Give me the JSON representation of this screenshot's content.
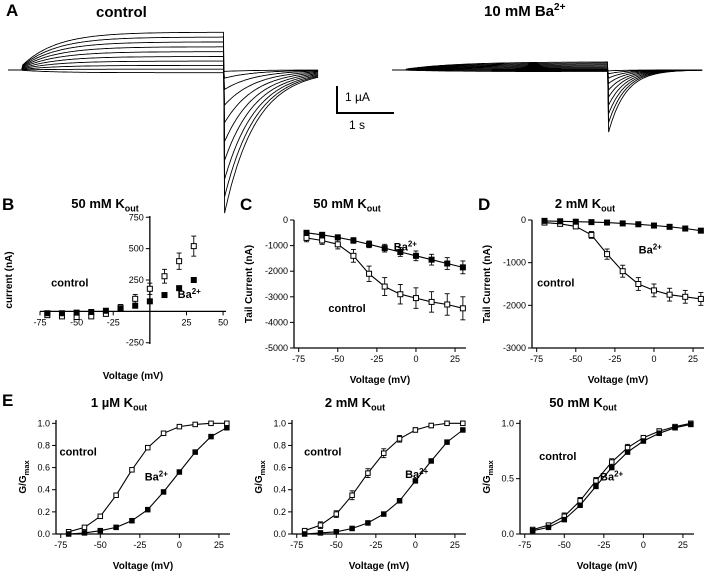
{
  "A": {
    "label": "A",
    "control_title": "control",
    "ba_title": {
      "pre": "10 mM Ba",
      "sup": "2+"
    },
    "scalebar": {
      "amp": "1 µA",
      "time": "1 s"
    },
    "traces": {
      "control": {
        "pulse_uA": [
          1.4,
          1.22,
          1.04,
          0.86,
          0.68,
          0.5,
          0.33,
          0.17,
          0.03,
          -0.1
        ],
        "tail_uA": [
          -5.3,
          -4.7,
          -4.05,
          -3.35,
          -2.65,
          -1.95,
          -1.3,
          -0.72,
          -0.3,
          -0.05
        ],
        "tau_act_s": 0.6,
        "tau_tail_s": 0.55
      },
      "ba": {
        "pulse_uA": [
          0.3,
          0.26,
          0.22,
          0.18,
          0.14,
          0.1,
          0.06,
          0.02,
          -0.02,
          -0.06
        ],
        "tail_uA": [
          -2.3,
          -1.95,
          -1.62,
          -1.3,
          -1.0,
          -0.74,
          -0.5,
          -0.3,
          -0.14,
          -0.03
        ],
        "tau_act_s": 0.9,
        "tau_tail_s": 0.3
      }
    }
  },
  "B": {
    "label": "B",
    "title": {
      "pre": "50 mM K",
      "sub": "out"
    }
  },
  "C": {
    "label": "C",
    "title": {
      "pre": "50 mM K",
      "sub": "out"
    }
  },
  "D": {
    "label": "D",
    "title": {
      "pre": "2 mM K",
      "sub": "out"
    }
  },
  "E": {
    "label": "E",
    "p1": {
      "title": {
        "pre": "1 µM K",
        "sub": "out"
      }
    },
    "p2": {
      "title": {
        "pre": "2 mM K",
        "sub": "out"
      }
    },
    "p3": {
      "title": {
        "pre": "50 mM K",
        "sub": "out"
      }
    }
  },
  "chart_data": [
    {
      "panel": "B",
      "type": "scatter",
      "xlabel": "Voltage (mV)",
      "ylabel": {
        "pre": "current (nA)"
      },
      "xlim": [
        -75,
        52
      ],
      "ylim": [
        -260,
        760
      ],
      "xticks": [
        {
          "v": -75,
          "l": "-75"
        },
        {
          "v": -50,
          "l": "-50"
        },
        {
          "v": -25,
          "l": "-25"
        },
        {
          "v": 25,
          "l": "25"
        },
        {
          "v": 50,
          "l": "50"
        }
      ],
      "yticks": [
        {
          "v": -250,
          "l": "-250"
        },
        {
          "v": 250,
          "l": "250"
        },
        {
          "v": 500,
          "l": "500"
        },
        {
          "v": 750,
          "l": "750"
        }
      ],
      "x": [
        -70,
        -60,
        -50,
        -40,
        -30,
        -20,
        -10,
        0,
        10,
        20,
        30
      ],
      "series": [
        {
          "name": "control",
          "marker": "open",
          "line": false,
          "y": [
            -30,
            -40,
            -45,
            -40,
            -20,
            30,
            100,
            180,
            280,
            400,
            520
          ],
          "err": [
            0,
            0,
            0,
            0,
            0,
            25,
            35,
            45,
            55,
            65,
            80
          ]
        },
        {
          "name": "Ba2+",
          "marker": "filled",
          "line": false,
          "y": [
            -15,
            -15,
            -10,
            -5,
            5,
            20,
            45,
            80,
            130,
            185,
            250
          ],
          "err": []
        }
      ],
      "annotations": [
        {
          "pre": "control",
          "fx": 0.06,
          "fy": 0.55
        },
        {
          "pre": "Ba",
          "sup": "2+",
          "fx": 0.74,
          "fy": 0.64
        }
      ]
    },
    {
      "panel": "C",
      "type": "line",
      "xlabel": "Voltage (mV)",
      "ylabel": {
        "pre": "Tail Current (nA)"
      },
      "xlim": [
        -78,
        32
      ],
      "ylim": [
        -5000,
        0
      ],
      "xticks": [
        {
          "v": -75,
          "l": "-75"
        },
        {
          "v": -50,
          "l": "-50"
        },
        {
          "v": -25,
          "l": "-25"
        },
        {
          "v": 0,
          "l": "0"
        },
        {
          "v": 25,
          "l": "25"
        }
      ],
      "yticks": [
        {
          "v": 0,
          "l": "0"
        },
        {
          "v": -1000,
          "l": "-1000"
        },
        {
          "v": -2000,
          "l": "-2000"
        },
        {
          "v": -3000,
          "l": "-3000"
        },
        {
          "v": -4000,
          "l": "-4000"
        },
        {
          "v": -5000,
          "l": "-5000"
        }
      ],
      "x": [
        -70,
        -60,
        -50,
        -40,
        -30,
        -20,
        -10,
        0,
        10,
        20,
        30
      ],
      "series": [
        {
          "name": "control",
          "marker": "open",
          "line": true,
          "y": [
            -700,
            -800,
            -950,
            -1400,
            -2100,
            -2600,
            -2900,
            -3050,
            -3200,
            -3300,
            -3450
          ],
          "err": [
            150,
            150,
            180,
            250,
            300,
            350,
            380,
            400,
            400,
            420,
            450
          ]
        },
        {
          "name": "Ba2+",
          "marker": "filled",
          "line": true,
          "y": [
            -500,
            -580,
            -680,
            -800,
            -950,
            -1100,
            -1250,
            -1400,
            -1550,
            -1700,
            -1850
          ],
          "err": [
            90,
            95,
            100,
            110,
            130,
            150,
            170,
            190,
            210,
            230,
            250
          ]
        }
      ],
      "annotations": [
        {
          "pre": "Ba",
          "sup": "2+",
          "fx": 0.58,
          "fy": 0.24
        },
        {
          "pre": "control",
          "fx": 0.2,
          "fy": 0.72
        }
      ]
    },
    {
      "panel": "D",
      "type": "line",
      "xlabel": "Voltage (mV)",
      "ylabel": {
        "pre": "Tail Current (nA)"
      },
      "xlim": [
        -78,
        32
      ],
      "ylim": [
        -3000,
        0
      ],
      "xticks": [
        {
          "v": -75,
          "l": "-75"
        },
        {
          "v": -50,
          "l": "-50"
        },
        {
          "v": -25,
          "l": "-25"
        },
        {
          "v": 0,
          "l": "0"
        },
        {
          "v": 25,
          "l": "25"
        }
      ],
      "yticks": [
        {
          "v": 0,
          "l": "0"
        },
        {
          "v": -1000,
          "l": "-1000"
        },
        {
          "v": -2000,
          "l": "-2000"
        },
        {
          "v": -3000,
          "l": "-3000"
        }
      ],
      "x": [
        -70,
        -60,
        -50,
        -40,
        -30,
        -20,
        -10,
        0,
        10,
        20,
        30
      ],
      "series": [
        {
          "name": "control",
          "marker": "open",
          "line": true,
          "y": [
            -60,
            -90,
            -150,
            -350,
            -800,
            -1200,
            -1500,
            -1650,
            -1750,
            -1800,
            -1850
          ],
          "err": [
            30,
            30,
            40,
            80,
            120,
            140,
            150,
            150,
            150,
            150,
            150
          ]
        },
        {
          "name": "Ba2+",
          "marker": "filled",
          "line": true,
          "y": [
            -20,
            -30,
            -40,
            -50,
            -60,
            -80,
            -100,
            -130,
            -160,
            -200,
            -250
          ],
          "err": []
        }
      ],
      "annotations": [
        {
          "pre": "Ba",
          "sup": "2+",
          "fx": 0.62,
          "fy": 0.26
        },
        {
          "pre": "control",
          "fx": 0.03,
          "fy": 0.52
        }
      ]
    },
    {
      "panel": "E1",
      "type": "line",
      "xlabel": "Voltage (mV)",
      "ylabel": {
        "pre": "G/G",
        "sub": "max"
      },
      "xlim": [
        -78,
        32
      ],
      "ylim": [
        0,
        1.03
      ],
      "xticks": [
        {
          "v": -75,
          "l": "-75"
        },
        {
          "v": -50,
          "l": "-50"
        },
        {
          "v": -25,
          "l": "-25"
        },
        {
          "v": 0,
          "l": "0"
        },
        {
          "v": 25,
          "l": "25"
        }
      ],
      "yticks": [
        {
          "v": 0,
          "l": "0.0"
        },
        {
          "v": 0.2,
          "l": "0.2"
        },
        {
          "v": 0.4,
          "l": "0.4"
        },
        {
          "v": 0.6,
          "l": "0.6"
        },
        {
          "v": 0.8,
          "l": "0.8"
        },
        {
          "v": 1.0,
          "l": "1.0"
        }
      ],
      "x": [
        -70,
        -60,
        -50,
        -40,
        -30,
        -20,
        -10,
        0,
        10,
        20,
        30
      ],
      "series": [
        {
          "name": "control",
          "marker": "open",
          "line": true,
          "y": [
            0.02,
            0.06,
            0.16,
            0.35,
            0.58,
            0.78,
            0.91,
            0.97,
            0.99,
            1.0,
            1.0
          ],
          "err": []
        },
        {
          "name": "Ba2+",
          "marker": "filled",
          "line": true,
          "y": [
            0.0,
            0.01,
            0.03,
            0.06,
            0.12,
            0.22,
            0.38,
            0.56,
            0.74,
            0.88,
            0.96
          ],
          "err": []
        }
      ],
      "annotations": [
        {
          "pre": "control",
          "fx": 0.02,
          "fy": 0.31
        },
        {
          "pre": "Ba",
          "sup": "2+",
          "fx": 0.51,
          "fy": 0.53
        }
      ]
    },
    {
      "panel": "E2",
      "type": "line",
      "xlabel": "Voltage (mV)",
      "ylabel": {
        "pre": "G/G",
        "sub": "max"
      },
      "xlim": [
        -78,
        32
      ],
      "ylim": [
        0,
        1.03
      ],
      "xticks": [
        {
          "v": -75,
          "l": "-75"
        },
        {
          "v": -50,
          "l": "-50"
        },
        {
          "v": -25,
          "l": "-25"
        },
        {
          "v": 0,
          "l": "0"
        },
        {
          "v": 25,
          "l": "25"
        }
      ],
      "yticks": [
        {
          "v": 0,
          "l": "0.0"
        },
        {
          "v": 0.2,
          "l": "0.2"
        },
        {
          "v": 0.4,
          "l": "0.4"
        },
        {
          "v": 0.6,
          "l": "0.6"
        },
        {
          "v": 0.8,
          "l": "0.8"
        },
        {
          "v": 1.0,
          "l": "1.0"
        }
      ],
      "x": [
        -70,
        -60,
        -50,
        -40,
        -30,
        -20,
        -10,
        0,
        10,
        20,
        30
      ],
      "series": [
        {
          "name": "control",
          "marker": "open",
          "line": true,
          "y": [
            0.03,
            0.08,
            0.18,
            0.35,
            0.55,
            0.73,
            0.86,
            0.94,
            0.98,
            1.0,
            1.0
          ],
          "err": [
            0.02,
            0.03,
            0.03,
            0.04,
            0.04,
            0.04,
            0.03,
            0.02,
            0.02,
            0.02,
            0.02
          ]
        },
        {
          "name": "Ba2+",
          "marker": "filled",
          "line": true,
          "y": [
            0.0,
            0.01,
            0.02,
            0.05,
            0.1,
            0.18,
            0.3,
            0.48,
            0.66,
            0.83,
            0.94
          ],
          "err": []
        }
      ],
      "annotations": [
        {
          "pre": "control",
          "fx": 0.07,
          "fy": 0.31
        },
        {
          "pre": "Ba",
          "sup": "2+",
          "fx": 0.65,
          "fy": 0.51
        }
      ]
    },
    {
      "panel": "E3",
      "type": "line",
      "xlabel": "Voltage (mV)",
      "ylabel": {
        "pre": "G/G",
        "sub": "max"
      },
      "xlim": [
        -78,
        32
      ],
      "ylim": [
        0,
        1.03
      ],
      "xticks": [
        {
          "v": -75,
          "l": "-75"
        },
        {
          "v": -50,
          "l": "-50"
        },
        {
          "v": -25,
          "l": "-25"
        },
        {
          "v": 0,
          "l": "0"
        },
        {
          "v": 25,
          "l": "25"
        }
      ],
      "yticks": [
        {
          "v": 0,
          "l": "0.0"
        },
        {
          "v": 0.5,
          "l": "0.5"
        },
        {
          "v": 1.0,
          "l": "1.0"
        }
      ],
      "x": [
        -70,
        -60,
        -50,
        -40,
        -30,
        -20,
        -10,
        0,
        10,
        20,
        30
      ],
      "series": [
        {
          "name": "control",
          "marker": "open",
          "line": true,
          "y": [
            0.04,
            0.08,
            0.16,
            0.3,
            0.48,
            0.65,
            0.78,
            0.87,
            0.93,
            0.97,
            1.0
          ],
          "err": [
            0.02,
            0.02,
            0.03,
            0.03,
            0.03,
            0.03,
            0.03,
            0.02,
            0.02,
            0.02,
            0.02
          ]
        },
        {
          "name": "Ba2+",
          "marker": "filled",
          "line": true,
          "y": [
            0.03,
            0.06,
            0.13,
            0.26,
            0.43,
            0.6,
            0.74,
            0.84,
            0.91,
            0.96,
            0.99
          ],
          "err": []
        }
      ],
      "annotations": [
        {
          "pre": "control",
          "fx": 0.11,
          "fy": 0.35
        },
        {
          "pre": "Ba",
          "sup": "2+",
          "fx": 0.46,
          "fy": 0.53
        }
      ]
    }
  ]
}
